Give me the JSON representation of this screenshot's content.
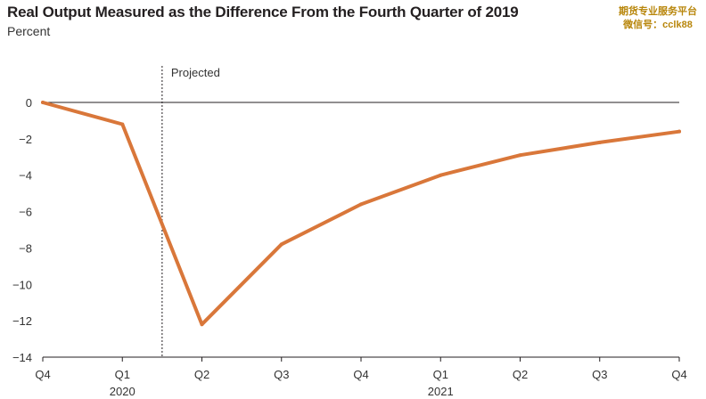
{
  "title": "Real Output Measured as the Difference From the Fourth Quarter of 2019",
  "subtitle": "Percent",
  "watermark": {
    "line1": "期货专业服务平台",
    "line2": "微信号：cclk88"
  },
  "chart_data": {
    "type": "line",
    "title": "Real Output Measured as the Difference From the Fourth Quarter of 2019",
    "ylabel": "Percent",
    "categories": [
      "Q4",
      "Q1",
      "Q2",
      "Q3",
      "Q4",
      "Q1",
      "Q2",
      "Q3",
      "Q4"
    ],
    "year_labels": [
      {
        "label": "2020",
        "index": 1
      },
      {
        "label": "2021",
        "index": 5
      }
    ],
    "series": [
      {
        "color": "#d9773a",
        "values": [
          0,
          -1.2,
          -12.2,
          -7.8,
          -5.6,
          -4.0,
          -2.9,
          -2.2,
          -1.6
        ]
      }
    ],
    "ylim": [
      -14,
      0
    ],
    "yticks": [
      0,
      -2,
      -4,
      -6,
      -8,
      -10,
      -12,
      -14
    ],
    "zero_line": true,
    "grid": false,
    "annotation": {
      "label": "Projected",
      "x_position": 1.5
    }
  }
}
